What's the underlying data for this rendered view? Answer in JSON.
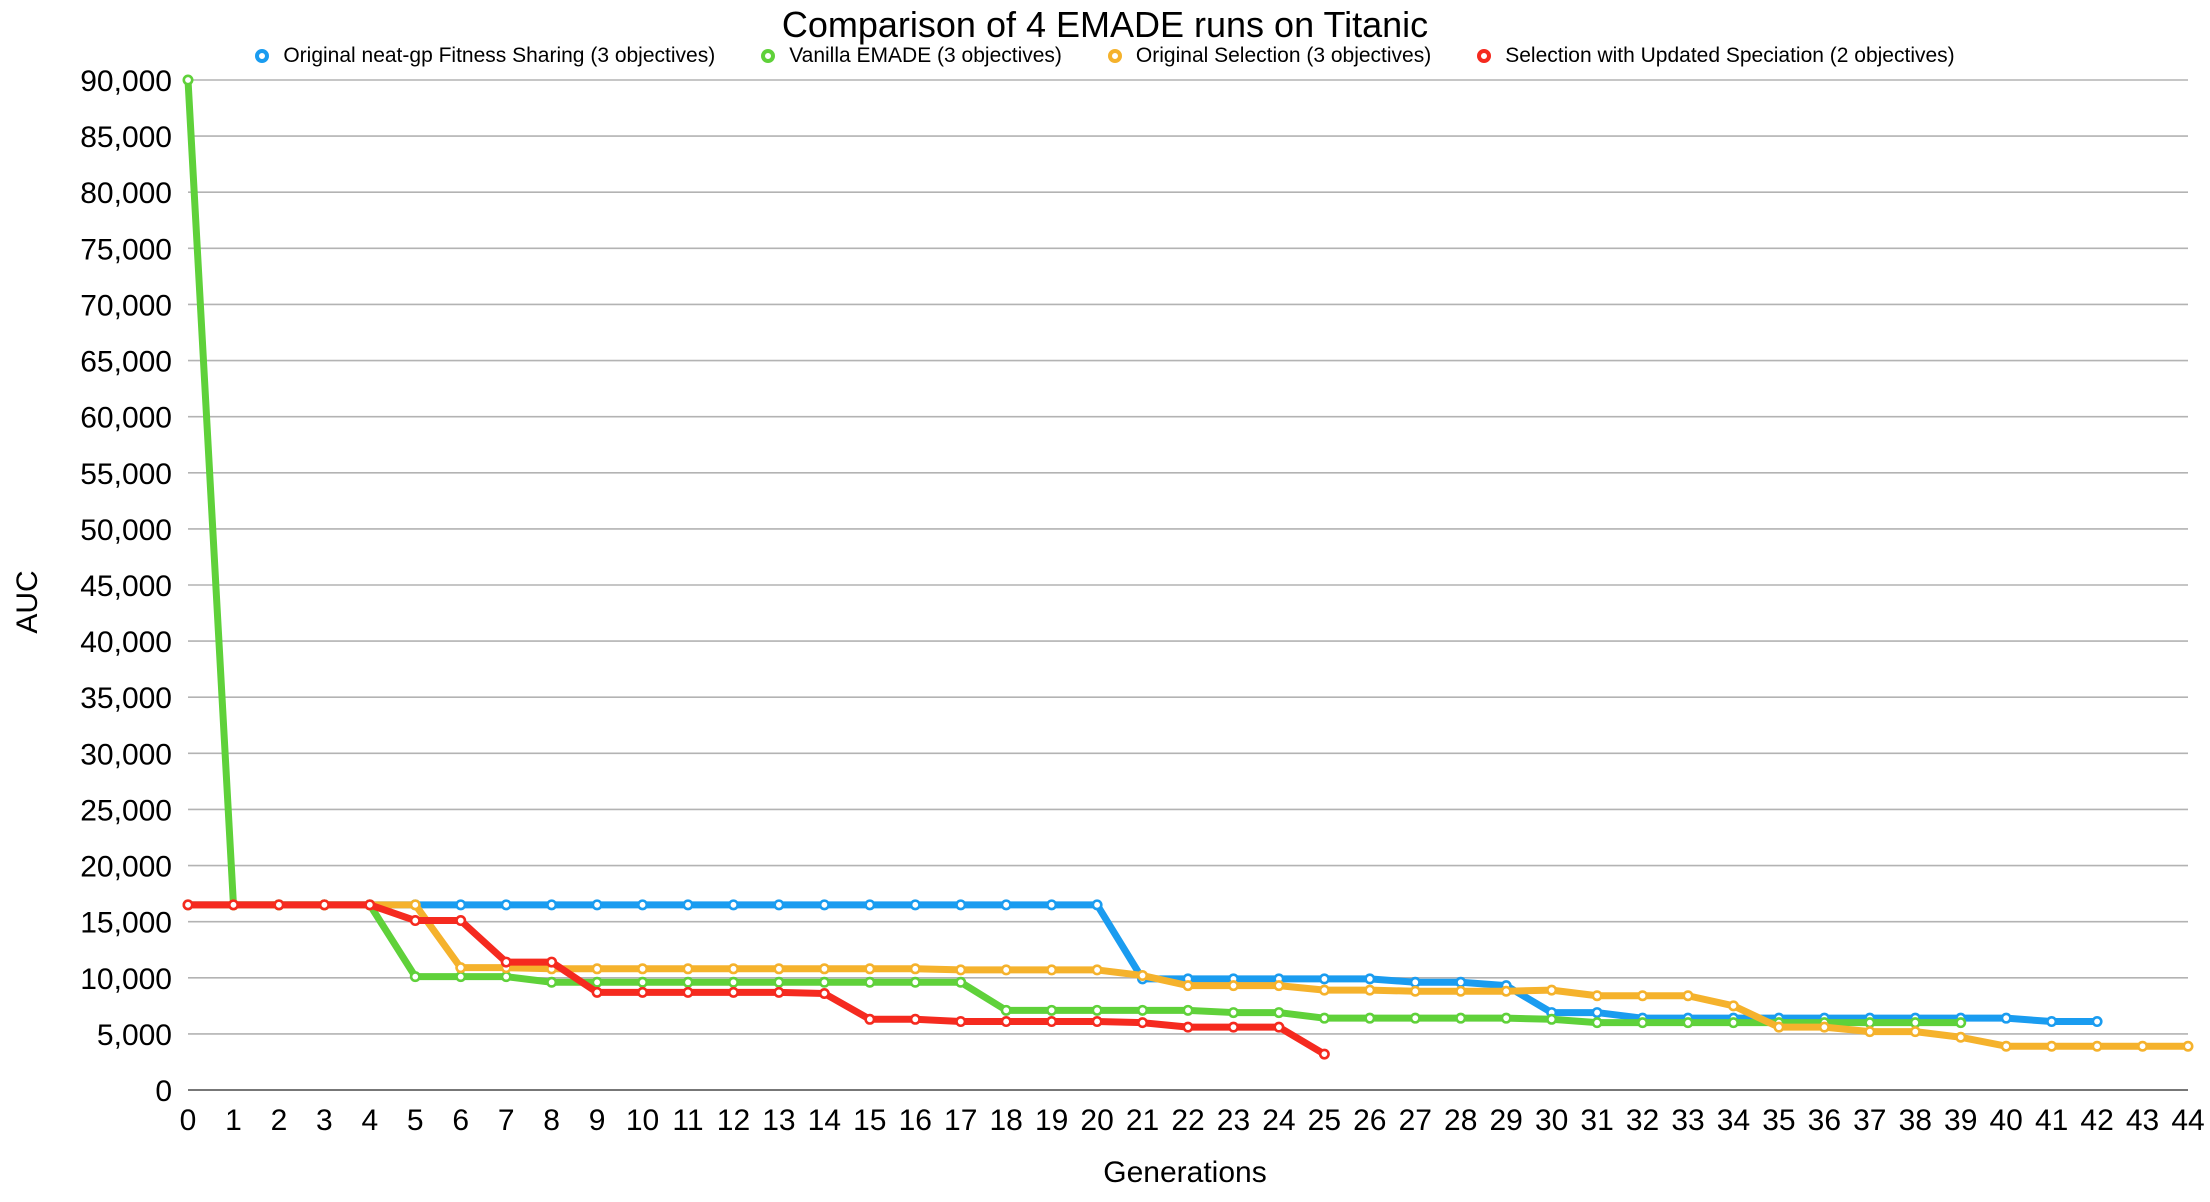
{
  "chart_data": {
    "type": "line",
    "title": "Comparison of 4 EMADE runs on Titanic",
    "xlabel": "Generations",
    "ylabel": "AUC",
    "ylim": [
      0,
      90000
    ],
    "xlim": [
      0,
      44
    ],
    "yticks": [
      "0",
      "5,000",
      "10,000",
      "15,000",
      "20,000",
      "25,000",
      "30,000",
      "35,000",
      "40,000",
      "45,000",
      "50,000",
      "55,000",
      "60,000",
      "65,000",
      "70,000",
      "75,000",
      "80,000",
      "85,000",
      "90,000"
    ],
    "xticks": [
      "0",
      "1",
      "2",
      "3",
      "4",
      "5",
      "6",
      "7",
      "8",
      "9",
      "10",
      "11",
      "12",
      "13",
      "14",
      "15",
      "16",
      "17",
      "18",
      "19",
      "20",
      "21",
      "22",
      "23",
      "24",
      "25",
      "26",
      "27",
      "28",
      "29",
      "30",
      "31",
      "32",
      "33",
      "34",
      "35",
      "36",
      "37",
      "38",
      "39",
      "40",
      "41",
      "42",
      "43",
      "44"
    ],
    "grid": true,
    "legend_position": "top",
    "series": [
      {
        "name": "Original neat-gp Fitness Sharing (3 objectives)",
        "color": "#1a9cf0",
        "x": [
          0,
          1,
          2,
          3,
          4,
          5,
          6,
          7,
          8,
          9,
          10,
          11,
          12,
          13,
          14,
          15,
          16,
          17,
          18,
          19,
          20,
          21,
          22,
          23,
          24,
          25,
          26,
          27,
          28,
          29,
          30,
          31,
          32,
          33,
          34,
          35,
          36,
          37,
          38,
          39,
          40,
          41,
          42
        ],
        "values": [
          16500,
          16500,
          16500,
          16500,
          16500,
          16500,
          16500,
          16500,
          16500,
          16500,
          16500,
          16500,
          16500,
          16500,
          16500,
          16500,
          16500,
          16500,
          16500,
          16500,
          16500,
          9900,
          9900,
          9900,
          9900,
          9900,
          9900,
          9600,
          9600,
          9300,
          6900,
          6900,
          6400,
          6400,
          6400,
          6400,
          6400,
          6400,
          6400,
          6400,
          6400,
          6100,
          6100
        ]
      },
      {
        "name": "Vanilla EMADE (3 objectives)",
        "color": "#5fd13a",
        "x": [
          0,
          1,
          2,
          3,
          4,
          5,
          6,
          7,
          8,
          9,
          10,
          11,
          12,
          13,
          14,
          15,
          16,
          17,
          18,
          19,
          20,
          21,
          22,
          23,
          24,
          25,
          26,
          27,
          28,
          29,
          30,
          31,
          32,
          33,
          34,
          35,
          36,
          37,
          38,
          39
        ],
        "values": [
          90000,
          16500,
          16500,
          16500,
          16500,
          10100,
          10100,
          10100,
          9600,
          9600,
          9600,
          9600,
          9600,
          9600,
          9600,
          9600,
          9600,
          9600,
          7100,
          7100,
          7100,
          7100,
          7100,
          6900,
          6900,
          6400,
          6400,
          6400,
          6400,
          6400,
          6300,
          6000,
          6000,
          6000,
          6000,
          6000,
          6000,
          6000,
          6000,
          6000
        ]
      },
      {
        "name": "Original Selection (3 objectives)",
        "color": "#f5b22c",
        "x": [
          0,
          1,
          2,
          3,
          4,
          5,
          6,
          7,
          8,
          9,
          10,
          11,
          12,
          13,
          14,
          15,
          16,
          17,
          18,
          19,
          20,
          21,
          22,
          23,
          24,
          25,
          26,
          27,
          28,
          29,
          30,
          31,
          32,
          33,
          34,
          35,
          36,
          37,
          38,
          39,
          40,
          41,
          42,
          43,
          44
        ],
        "values": [
          16500,
          16500,
          16500,
          16500,
          16500,
          16500,
          10900,
          10900,
          10800,
          10800,
          10800,
          10800,
          10800,
          10800,
          10800,
          10800,
          10800,
          10700,
          10700,
          10700,
          10700,
          10200,
          9300,
          9300,
          9300,
          8900,
          8900,
          8800,
          8800,
          8800,
          8900,
          8400,
          8400,
          8400,
          7500,
          5600,
          5600,
          5200,
          5200,
          4700,
          3900,
          3900,
          3900,
          3900,
          3900
        ]
      },
      {
        "name": "Selection with Updated Speciation (2 objectives)",
        "color": "#f52a1f",
        "x": [
          0,
          1,
          2,
          3,
          4,
          5,
          6,
          7,
          8,
          9,
          10,
          11,
          12,
          13,
          14,
          15,
          16,
          17,
          18,
          19,
          20,
          21,
          22,
          23,
          24,
          25
        ],
        "values": [
          16500,
          16500,
          16500,
          16500,
          16500,
          15100,
          15100,
          11400,
          11400,
          8700,
          8700,
          8700,
          8700,
          8700,
          8600,
          6300,
          6300,
          6100,
          6100,
          6100,
          6100,
          6000,
          5600,
          5600,
          5600,
          3200
        ]
      }
    ]
  }
}
